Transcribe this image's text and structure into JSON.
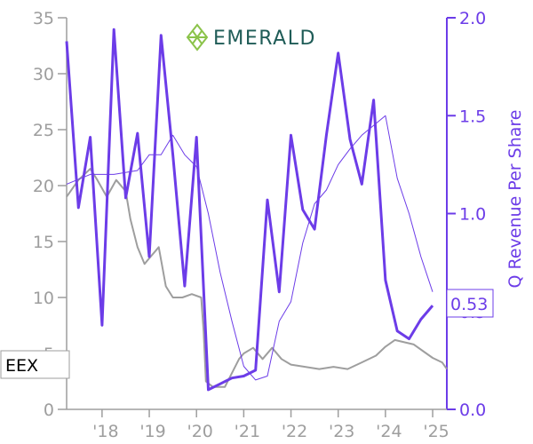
{
  "logo": {
    "text": "EMERALD",
    "icon": "emerald-logo-icon",
    "color": "#8bc34a"
  },
  "ticker_label": "EEX",
  "current_value_label": "0.53",
  "colors": {
    "price": "#9e9e9e",
    "revenue": "#6c3ce8",
    "logo_text": "#1f5c57"
  },
  "chart_data": {
    "type": "line",
    "ylabel_right": "Q Revenue Per Share",
    "x_ticks": [
      "'18",
      "'19",
      "'20",
      "'21",
      "'22",
      "'23",
      "'24",
      "'25"
    ],
    "x_tick_values": [
      2018.0,
      2019.0,
      2020.0,
      2021.0,
      2022.0,
      2023.0,
      2024.0,
      2025.0
    ],
    "xlim": [
      2017.25,
      2025.3
    ],
    "y_left": {
      "ticks": [
        "0",
        "5",
        "10",
        "15",
        "20",
        "25",
        "30",
        "35"
      ],
      "range": [
        0,
        35
      ]
    },
    "y_right": {
      "ticks": [
        "0.0",
        "0.5",
        "1.0",
        "1.5",
        "2.0"
      ],
      "range": [
        0,
        2.0
      ]
    },
    "series": [
      {
        "axis": "left",
        "style": "price",
        "x": [
          2017.25,
          2017.5,
          2017.75,
          2017.9,
          2018.1,
          2018.3,
          2018.5,
          2018.6,
          2018.75,
          2018.9,
          2019.0,
          2019.2,
          2019.35,
          2019.5,
          2019.7,
          2019.9,
          2020.1,
          2020.15,
          2020.2,
          2020.35,
          2020.6,
          2020.9,
          2021.0,
          2021.2,
          2021.4,
          2021.6,
          2021.8,
          2022.0,
          2022.3,
          2022.6,
          2022.9,
          2023.2,
          2023.5,
          2023.8,
          2024.0,
          2024.2,
          2024.4,
          2024.6,
          2024.8,
          2025.0,
          2025.2,
          2025.3
        ],
        "y": [
          19.0,
          20.5,
          21.5,
          20.5,
          19.0,
          20.5,
          19.5,
          17.0,
          14.5,
          13.0,
          13.5,
          14.5,
          11.0,
          10.0,
          10.0,
          10.3,
          10.0,
          7.0,
          2.5,
          2.0,
          2.0,
          4.5,
          5.0,
          5.5,
          4.5,
          5.5,
          4.5,
          4.0,
          3.8,
          3.6,
          3.8,
          3.6,
          4.2,
          4.8,
          5.6,
          6.2,
          6.0,
          5.8,
          5.2,
          4.6,
          4.2,
          3.6
        ]
      },
      {
        "axis": "right",
        "style": "ttm",
        "x": [
          2017.25,
          2017.75,
          2018.25,
          2018.75,
          2019.0,
          2019.25,
          2019.5,
          2019.75,
          2020.0,
          2020.25,
          2020.5,
          2020.75,
          2021.0,
          2021.25,
          2021.5,
          2021.75,
          2022.0,
          2022.25,
          2022.5,
          2022.75,
          2023.0,
          2023.25,
          2023.5,
          2023.75,
          2024.0,
          2024.25,
          2024.5,
          2024.75,
          2025.0
        ],
        "y": [
          1.15,
          1.2,
          1.2,
          1.22,
          1.3,
          1.3,
          1.4,
          1.3,
          1.24,
          1.0,
          0.7,
          0.45,
          0.22,
          0.15,
          0.17,
          0.45,
          0.55,
          0.85,
          1.05,
          1.12,
          1.25,
          1.33,
          1.4,
          1.45,
          1.5,
          1.18,
          1.0,
          0.78,
          0.6
        ]
      },
      {
        "axis": "right",
        "style": "quarterly",
        "x": [
          2017.25,
          2017.5,
          2017.75,
          2018.0,
          2018.25,
          2018.5,
          2018.75,
          2019.0,
          2019.25,
          2019.5,
          2019.75,
          2020.0,
          2020.25,
          2020.5,
          2020.75,
          2021.0,
          2021.25,
          2021.5,
          2021.75,
          2022.0,
          2022.25,
          2022.5,
          2022.75,
          2023.0,
          2023.25,
          2023.5,
          2023.75,
          2024.0,
          2024.25,
          2024.5,
          2024.75,
          2025.0
        ],
        "y": [
          1.88,
          1.03,
          1.39,
          0.43,
          1.94,
          1.08,
          1.41,
          0.78,
          1.91,
          1.3,
          0.63,
          1.39,
          0.1,
          0.13,
          0.16,
          0.17,
          0.2,
          1.07,
          0.6,
          1.4,
          1.02,
          0.92,
          1.4,
          1.82,
          1.38,
          1.15,
          1.58,
          0.66,
          0.4,
          0.36,
          0.46,
          0.53
        ]
      }
    ]
  }
}
